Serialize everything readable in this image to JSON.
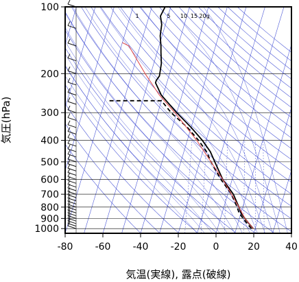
{
  "chart_data": {
    "type": "line",
    "chart_kind": "skew-T log-P thermodynamic diagram",
    "xlabel": "気温(実線), 露点(破線)",
    "ylabel": "気圧(hPa)",
    "y_scale": "log",
    "y_inverted": true,
    "xlim": [
      -80,
      40
    ],
    "ylim": [
      1050,
      100
    ],
    "x_ticks": [
      -80,
      -60,
      -40,
      -20,
      0,
      20,
      40
    ],
    "y_ticks": [
      100,
      200,
      300,
      400,
      500,
      600,
      700,
      800,
      900,
      1000
    ],
    "mixing_ratio_labels": [
      "1",
      "5",
      "10",
      "15",
      "20g"
    ],
    "grid": true,
    "series": [
      {
        "style": "solid",
        "color": "#000000",
        "points": [
          [
            1000,
            19
          ],
          [
            950,
            16
          ],
          [
            900,
            13
          ],
          [
            850,
            10
          ],
          [
            800,
            8
          ],
          [
            700,
            3
          ],
          [
            600,
            -5
          ],
          [
            500,
            -12
          ],
          [
            450,
            -16
          ],
          [
            400,
            -22
          ],
          [
            350,
            -30
          ],
          [
            300,
            -40
          ],
          [
            250,
            -51
          ],
          [
            220,
            -56
          ],
          [
            215,
            -56
          ],
          [
            205,
            -55
          ],
          [
            180,
            -56
          ],
          [
            160,
            -58
          ],
          [
            150,
            -59
          ],
          [
            135,
            -61
          ],
          [
            120,
            -62
          ],
          [
            110,
            -64
          ],
          [
            100,
            -63
          ]
        ]
      },
      {
        "style": "dashed",
        "color": "#000000",
        "points": [
          [
            1000,
            18
          ],
          [
            950,
            15
          ],
          [
            900,
            12
          ],
          [
            850,
            9
          ],
          [
            800,
            7
          ],
          [
            700,
            2
          ],
          [
            600,
            -6
          ],
          [
            500,
            -14
          ],
          [
            450,
            -18
          ],
          [
            400,
            -24
          ],
          [
            350,
            -32
          ],
          [
            300,
            -43
          ],
          [
            265,
            -50
          ],
          [
            265,
            -78
          ]
        ]
      },
      {
        "style": "solid",
        "color": "#e05050",
        "points": [
          [
            1000,
            19
          ],
          [
            900,
            13
          ],
          [
            800,
            8
          ],
          [
            700,
            2
          ],
          [
            600,
            -5
          ],
          [
            500,
            -14
          ],
          [
            400,
            -25
          ],
          [
            300,
            -41
          ],
          [
            250,
            -52
          ],
          [
            200,
            -63
          ],
          [
            150,
            -76
          ],
          [
            145,
            -80
          ]
        ]
      }
    ],
    "wind_barbs": true
  }
}
